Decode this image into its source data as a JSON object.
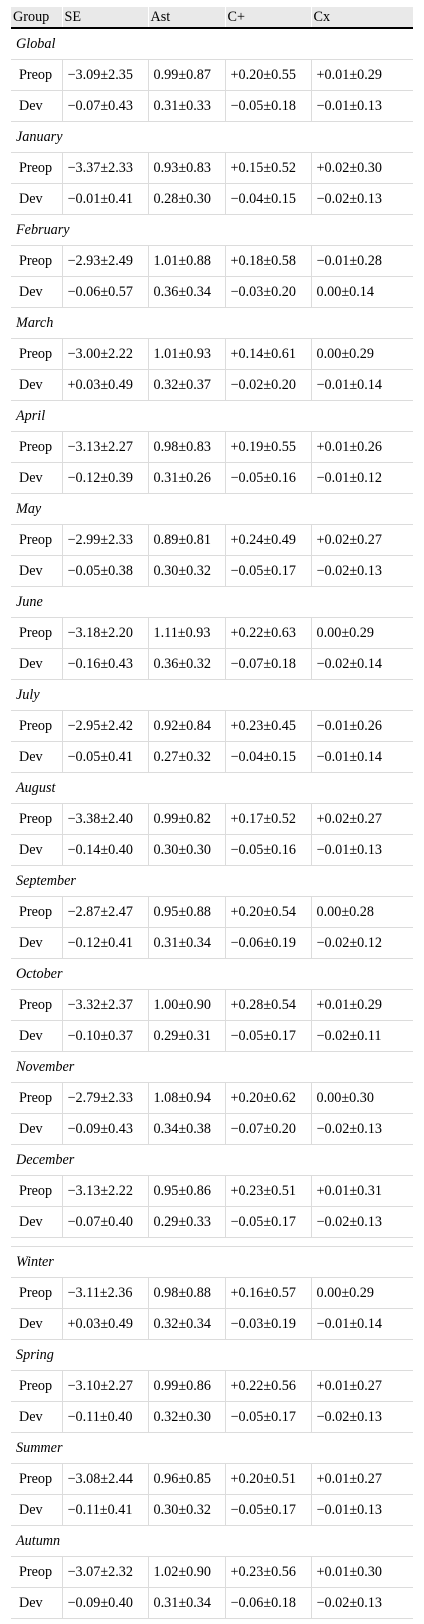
{
  "headers": [
    "Group",
    "SE",
    "Ast",
    "C+",
    "Cx"
  ],
  "sections": [
    {
      "group": "Global",
      "rows": [
        {
          "label": "Preop",
          "values": [
            "−3.09±2.35",
            "0.99±0.87",
            "+0.20±0.55",
            "+0.01±0.29"
          ]
        },
        {
          "label": "Dev",
          "values": [
            "−0.07±0.43",
            "0.31±0.33",
            "−0.05±0.18",
            "−0.01±0.13"
          ]
        }
      ]
    },
    {
      "group": "January",
      "rows": [
        {
          "label": "Preop",
          "values": [
            "−3.37±2.33",
            "0.93±0.83",
            "+0.15±0.52",
            "+0.02±0.30"
          ]
        },
        {
          "label": "Dev",
          "values": [
            "−0.01±0.41",
            "0.28±0.30",
            "−0.04±0.15",
            "−0.02±0.13"
          ]
        }
      ]
    },
    {
      "group": "February",
      "rows": [
        {
          "label": "Preop",
          "values": [
            "−2.93±2.49",
            "1.01±0.88",
            "+0.18±0.58",
            "−0.01±0.28"
          ]
        },
        {
          "label": "Dev",
          "values": [
            "−0.06±0.57",
            "0.36±0.34",
            "−0.03±0.20",
            "0.00±0.14"
          ]
        }
      ]
    },
    {
      "group": "March",
      "rows": [
        {
          "label": "Preop",
          "values": [
            "−3.00±2.22",
            "1.01±0.93",
            "+0.14±0.61",
            "0.00±0.29"
          ]
        },
        {
          "label": "Dev",
          "values": [
            "+0.03±0.49",
            "0.32±0.37",
            "−0.02±0.20",
            "−0.01±0.14"
          ]
        }
      ]
    },
    {
      "group": "April",
      "rows": [
        {
          "label": "Preop",
          "values": [
            "−3.13±2.27",
            "0.98±0.83",
            "+0.19±0.55",
            "+0.01±0.26"
          ]
        },
        {
          "label": "Dev",
          "values": [
            "−0.12±0.39",
            "0.31±0.26",
            "−0.05±0.16",
            "−0.01±0.12"
          ]
        }
      ]
    },
    {
      "group": "May",
      "rows": [
        {
          "label": "Preop",
          "values": [
            "−2.99±2.33",
            "0.89±0.81",
            "+0.24±0.49",
            "+0.02±0.27"
          ]
        },
        {
          "label": "Dev",
          "values": [
            "−0.05±0.38",
            "0.30±0.32",
            "−0.05±0.17",
            "−0.02±0.13"
          ]
        }
      ]
    },
    {
      "group": "June",
      "rows": [
        {
          "label": "Preop",
          "values": [
            "−3.18±2.20",
            "1.11±0.93",
            "+0.22±0.63",
            "0.00±0.29"
          ]
        },
        {
          "label": "Dev",
          "values": [
            "−0.16±0.43",
            "0.36±0.32",
            "−0.07±0.18",
            "−0.02±0.14"
          ]
        }
      ]
    },
    {
      "group": "July",
      "rows": [
        {
          "label": "Preop",
          "values": [
            "−2.95±2.42",
            "0.92±0.84",
            "+0.23±0.45",
            "−0.01±0.26"
          ]
        },
        {
          "label": "Dev",
          "values": [
            "−0.05±0.41",
            "0.27±0.32",
            "−0.04±0.15",
            "−0.01±0.14"
          ]
        }
      ]
    },
    {
      "group": "August",
      "rows": [
        {
          "label": "Preop",
          "values": [
            "−3.38±2.40",
            "0.99±0.82",
            "+0.17±0.52",
            "+0.02±0.27"
          ]
        },
        {
          "label": "Dev",
          "values": [
            "−0.14±0.40",
            "0.30±0.30",
            "−0.05±0.16",
            "−0.01±0.13"
          ]
        }
      ]
    },
    {
      "group": "September",
      "rows": [
        {
          "label": "Preop",
          "values": [
            "−2.87±2.47",
            "0.95±0.88",
            "+0.20±0.54",
            "0.00±0.28"
          ]
        },
        {
          "label": "Dev",
          "values": [
            "−0.12±0.41",
            "0.31±0.34",
            "−0.06±0.19",
            "−0.02±0.12"
          ]
        }
      ]
    },
    {
      "group": "October",
      "rows": [
        {
          "label": "Preop",
          "values": [
            "−3.32±2.37",
            "1.00±0.90",
            "+0.28±0.54",
            "+0.01±0.29"
          ]
        },
        {
          "label": "Dev",
          "values": [
            "−0.10±0.37",
            "0.29±0.31",
            "−0.05±0.17",
            "−0.02±0.11"
          ]
        }
      ]
    },
    {
      "group": "November",
      "rows": [
        {
          "label": "Preop",
          "values": [
            "−2.79±2.33",
            "1.08±0.94",
            "+0.20±0.62",
            "0.00±0.30"
          ]
        },
        {
          "label": "Dev",
          "values": [
            "−0.09±0.43",
            "0.34±0.38",
            "−0.07±0.20",
            "−0.02±0.13"
          ]
        }
      ]
    },
    {
      "group": "December",
      "rows": [
        {
          "label": "Preop",
          "values": [
            "−3.13±2.22",
            "0.95±0.86",
            "+0.23±0.51",
            "+0.01±0.31"
          ]
        },
        {
          "label": "Dev",
          "values": [
            "−0.07±0.40",
            "0.29±0.33",
            "−0.05±0.17",
            "−0.02±0.13"
          ]
        }
      ]
    },
    {
      "group": "Winter",
      "spacer_before": true,
      "rows": [
        {
          "label": "Preop",
          "values": [
            "−3.11±2.36",
            "0.98±0.88",
            "+0.16±0.57",
            "0.00±0.29"
          ]
        },
        {
          "label": "Dev",
          "values": [
            "+0.03±0.49",
            "0.32±0.34",
            "−0.03±0.19",
            "−0.01±0.14"
          ]
        }
      ]
    },
    {
      "group": "Spring",
      "rows": [
        {
          "label": "Preop",
          "values": [
            "−3.10±2.27",
            "0.99±0.86",
            "+0.22±0.56",
            "+0.01±0.27"
          ]
        },
        {
          "label": "Dev",
          "values": [
            "−0.11±0.40",
            "0.32±0.30",
            "−0.05±0.17",
            "−0.02±0.13"
          ]
        }
      ]
    },
    {
      "group": "Summer",
      "rows": [
        {
          "label": "Preop",
          "values": [
            "−3.08±2.44",
            "0.96±0.85",
            "+0.20±0.51",
            "+0.01±0.27"
          ]
        },
        {
          "label": "Dev",
          "values": [
            "−0.11±0.41",
            "0.30±0.32",
            "−0.05±0.17",
            "−0.01±0.13"
          ]
        }
      ]
    },
    {
      "group": "Autumn",
      "rows": [
        {
          "label": "Preop",
          "values": [
            "−3.07±2.32",
            "1.02±0.90",
            "+0.23±0.56",
            "+0.01±0.30"
          ]
        },
        {
          "label": "Dev",
          "values": [
            "−0.09±0.40",
            "0.31±0.34",
            "−0.06±0.18",
            "−0.02±0.13"
          ]
        }
      ]
    }
  ]
}
